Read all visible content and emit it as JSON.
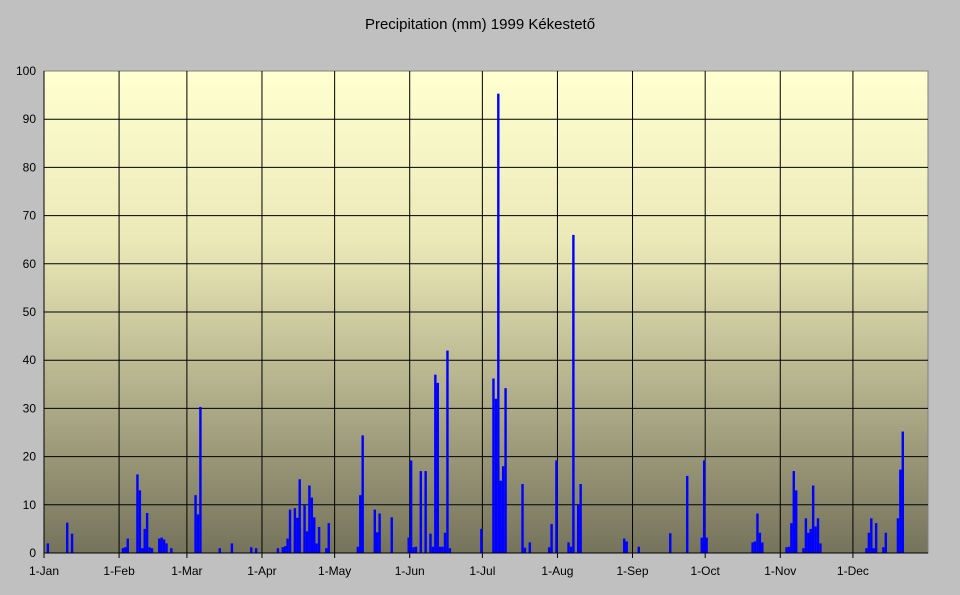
{
  "chart_data": {
    "type": "bar",
    "title": "Precipitation (mm) 1999 Kékestető",
    "xlabel": "",
    "ylabel": "",
    "ylim": [
      0,
      100
    ],
    "yticks": [
      0,
      10,
      20,
      30,
      40,
      50,
      60,
      70,
      80,
      90,
      100
    ],
    "grid": true,
    "x_unit": "day of year (0 = 1-Jan)",
    "xlim": [
      0,
      365
    ],
    "month_ticks": [
      {
        "label": "1-Jan",
        "day": 0
      },
      {
        "label": "1-Feb",
        "day": 31
      },
      {
        "label": "1-Mar",
        "day": 59
      },
      {
        "label": "1-Apr",
        "day": 90
      },
      {
        "label": "1-May",
        "day": 120
      },
      {
        "label": "1-Jun",
        "day": 151
      },
      {
        "label": "1-Jul",
        "day": 181
      },
      {
        "label": "1-Aug",
        "day": 212
      },
      {
        "label": "1-Sep",
        "day": 243
      },
      {
        "label": "1-Oct",
        "day": 273
      },
      {
        "label": "1-Nov",
        "day": 304
      },
      {
        "label": "1-Dec",
        "day": 334
      }
    ],
    "series": [
      {
        "name": "Precipitation",
        "color": "#0000ff",
        "x": [
          1,
          9,
          11,
          32,
          33,
          34,
          38,
          39,
          40,
          41,
          42,
          43,
          44,
          47,
          48,
          49,
          50,
          52,
          62,
          63,
          64,
          72,
          77,
          85,
          87,
          96,
          98,
          99,
          100,
          101,
          103,
          104,
          105,
          107,
          108,
          109,
          110,
          111,
          112,
          113,
          116,
          117,
          129,
          130,
          131,
          136,
          137,
          138,
          143,
          150,
          151,
          152,
          153,
          155,
          157,
          159,
          160,
          161,
          162,
          163,
          164,
          165,
          166,
          167,
          180,
          185,
          186,
          187,
          188,
          189,
          190,
          197,
          198,
          200,
          208,
          209,
          211,
          216,
          217,
          218,
          220,
          221,
          239,
          240,
          245,
          258,
          265,
          271,
          272,
          273,
          292,
          293,
          294,
          295,
          296,
          306,
          307,
          308,
          309,
          310,
          313,
          314,
          315,
          316,
          317,
          318,
          319,
          320,
          339,
          340,
          341,
          342,
          343,
          346,
          347,
          352,
          353,
          354
        ],
        "values": [
          2,
          6.3,
          4,
          1,
          1.2,
          3,
          16.3,
          13,
          1,
          5,
          8.3,
          1.2,
          1,
          3,
          3.2,
          2.8,
          2,
          1,
          12,
          8,
          30.3,
          1,
          2,
          1.2,
          1,
          1,
          1.2,
          1.4,
          3,
          9,
          9.3,
          7.3,
          15.3,
          10,
          4.5,
          14,
          11.5,
          7.4,
          2,
          5.4,
          1,
          6.2,
          1.3,
          12,
          24.4,
          9,
          4.3,
          8.2,
          7.4,
          3.2,
          19.2,
          1.2,
          1.3,
          17,
          17,
          4,
          1.3,
          37,
          35.3,
          1.3,
          1.3,
          4.2,
          42,
          1,
          5,
          36.2,
          32,
          95.3,
          15,
          18,
          34.2,
          14.3,
          1.1,
          2.2,
          1.2,
          6,
          19.2,
          2.2,
          1.3,
          66,
          10,
          14.3,
          3,
          2.4,
          1.3,
          4.1,
          16,
          3.2,
          19.2,
          3.2,
          2.2,
          2.4,
          8.2,
          4.2,
          2.2,
          1.2,
          1.3,
          6.2,
          17,
          13,
          1,
          7.2,
          4.2,
          5,
          14,
          5.5,
          7.2,
          2,
          1,
          4.2,
          7.2,
          1,
          6.2,
          1.2,
          4.2,
          7.2,
          17.3,
          25.2
        ]
      }
    ]
  }
}
